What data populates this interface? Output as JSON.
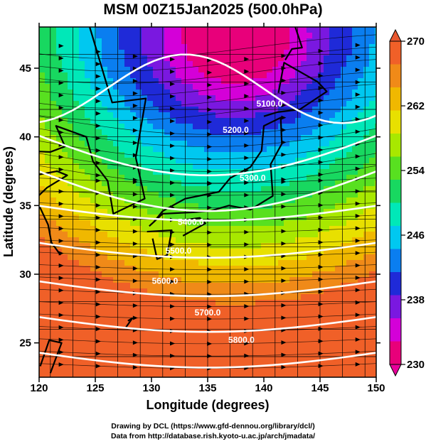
{
  "title": "MSM 00Z15Jan2025 (500.0hPa)",
  "x_axis": {
    "label": "Longitude (degrees)",
    "range": [
      120,
      150
    ],
    "ticks": [
      "120",
      "125",
      "130",
      "135",
      "140",
      "145",
      "150"
    ],
    "tick_values": [
      120,
      125,
      130,
      135,
      140,
      145,
      150
    ]
  },
  "y_axis": {
    "label": "Latitude  (degrees)",
    "range": [
      22.5,
      48
    ],
    "ticks": [
      "25",
      "30",
      "35",
      "40",
      "45"
    ],
    "tick_values": [
      25,
      30,
      35,
      40,
      45
    ]
  },
  "colorbar": {
    "range": [
      230,
      270
    ],
    "labels": [
      "270",
      "262",
      "254",
      "246",
      "238",
      "230"
    ],
    "label_values": [
      270,
      262,
      254,
      246,
      238,
      230
    ],
    "colors": [
      "#e8007a",
      "#d400d8",
      "#7a18e0",
      "#1f2ad8",
      "#0a7ef0",
      "#00c8f0",
      "#00e8b8",
      "#18d860",
      "#58e020",
      "#a8e800",
      "#e8e000",
      "#f0b800",
      "#f08a18",
      "#f06028"
    ]
  },
  "contours": [
    {
      "value": "5100.0"
    },
    {
      "value": "5200.0"
    },
    {
      "value": "5300.0"
    },
    {
      "value": "5400.0"
    },
    {
      "value": "5500.0"
    },
    {
      "value": "5600.0"
    },
    {
      "value": "5700.0"
    },
    {
      "value": "5800.0"
    }
  ],
  "credits": {
    "line1": "Drawing by DCL (https://www.gfd-dennou.org/library/dcl/)",
    "line2": "Data from http://database.rish.kyoto-u.ac.jp/arch/jmadata/"
  },
  "map": {
    "field": "temperature (K) shading, geopotential height contours, wind streamlines",
    "coastline_color": "#000000",
    "contour_color": "#ffffff",
    "grid_color": "#000000"
  }
}
